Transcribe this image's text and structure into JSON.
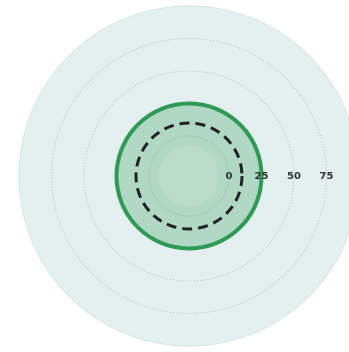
{
  "chart_data": {
    "type": "radial",
    "rlim": [
      0,
      100
    ],
    "rticks": [
      0,
      25,
      50,
      75
    ],
    "grid": true,
    "series": [
      {
        "color": "#2f9a55",
        "values": [
          25
        ]
      },
      {
        "color": "#222222",
        "values": [
          10
        ],
        "dashed": true
      }
    ]
  }
}
